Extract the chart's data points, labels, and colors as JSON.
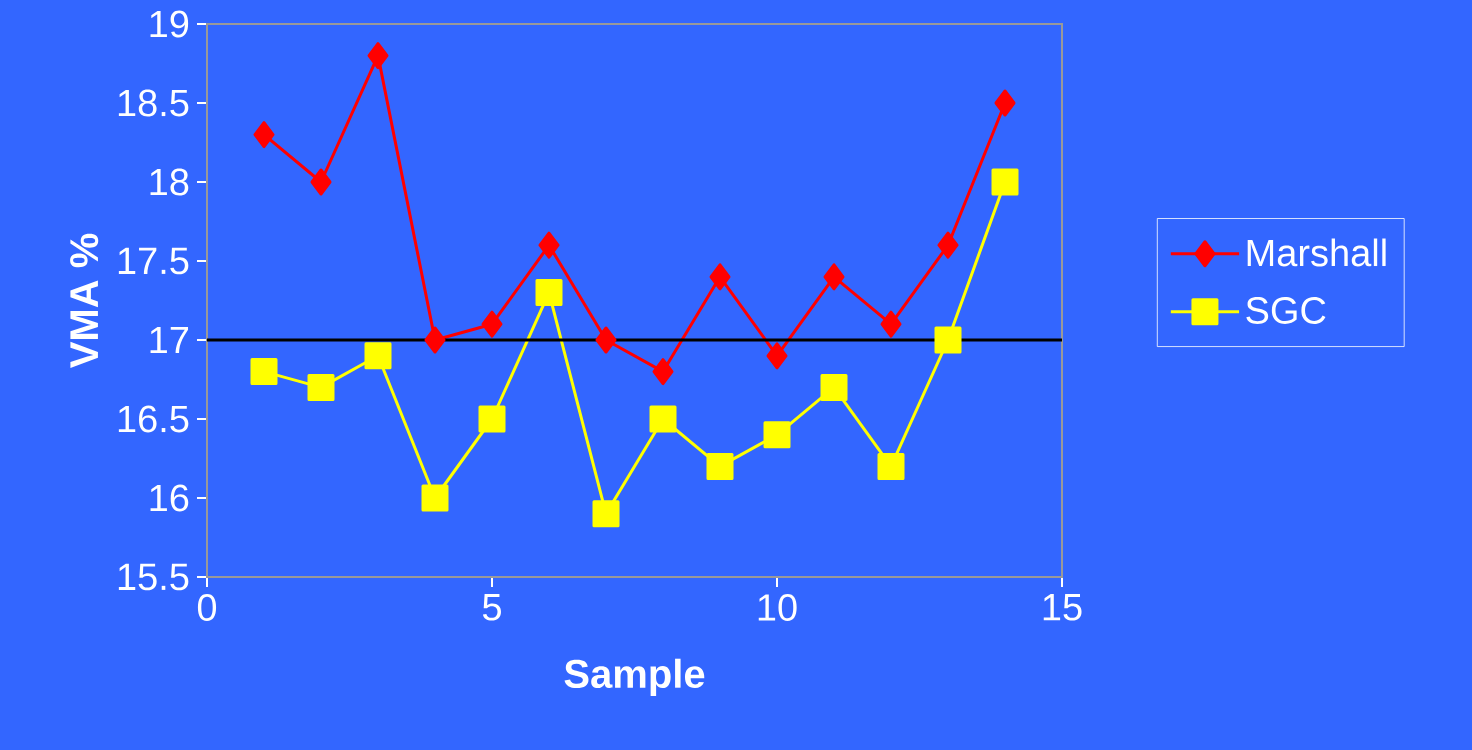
{
  "chart_data": {
    "type": "line",
    "xlabel": "Sample",
    "ylabel": "VMA %",
    "x": [
      1,
      2,
      3,
      4,
      5,
      6,
      7,
      8,
      9,
      10,
      11,
      12,
      13,
      14
    ],
    "series": [
      {
        "name": "Marshall",
        "color": "#ff0000",
        "marker": "diamond",
        "values": [
          18.3,
          18.0,
          18.8,
          17.0,
          17.1,
          17.6,
          17.0,
          16.8,
          17.4,
          16.9,
          17.4,
          17.1,
          17.6,
          18.5
        ]
      },
      {
        "name": "SGC",
        "color": "#ffff00",
        "marker": "square",
        "values": [
          16.8,
          16.7,
          16.9,
          16.0,
          16.5,
          17.3,
          15.9,
          16.5,
          16.2,
          16.4,
          16.7,
          16.2,
          17.0,
          18.0
        ]
      }
    ],
    "xlim": [
      0,
      15
    ],
    "xticks": [
      0,
      5,
      10,
      15
    ],
    "ylim": [
      15.5,
      19
    ],
    "yticks": [
      15.5,
      16,
      16.5,
      17,
      17.5,
      18,
      18.5,
      19
    ],
    "ref_lines": [
      {
        "axis": "y",
        "value": 17,
        "color": "#000000"
      }
    ],
    "legend": "right",
    "grid": false,
    "line_style": "solid"
  }
}
